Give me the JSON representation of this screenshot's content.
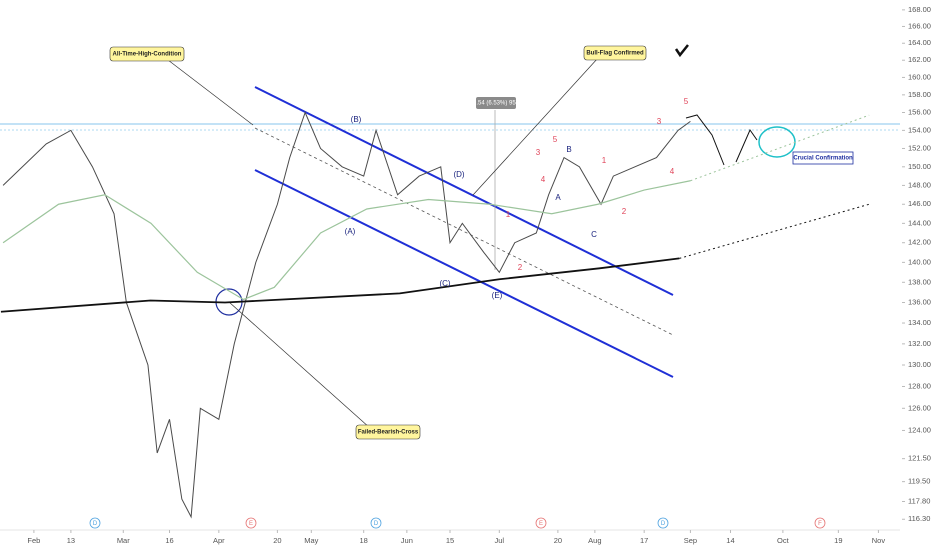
{
  "chart_data": {
    "type": "line",
    "y_scale": "log",
    "ylim": [
      115.4,
      169.2
    ],
    "xlim": [
      21,
      313
    ],
    "yticks": [
      {
        "value": 168,
        "label": "168.00"
      },
      {
        "value": 166,
        "label": "166.00"
      },
      {
        "value": 164,
        "label": "164.00"
      },
      {
        "value": 162,
        "label": "162.00"
      },
      {
        "value": 160,
        "label": "160.00"
      },
      {
        "value": 158,
        "label": "158.00"
      },
      {
        "value": 156,
        "label": "156.00"
      },
      {
        "value": 154,
        "label": "154.00"
      },
      {
        "value": 152,
        "label": "152.00"
      },
      {
        "value": 150,
        "label": "150.00"
      },
      {
        "value": 148,
        "label": "148.00"
      },
      {
        "value": 146,
        "label": "146.00"
      },
      {
        "value": 144,
        "label": "144.00"
      },
      {
        "value": 142,
        "label": "142.00"
      },
      {
        "value": 140,
        "label": "140.00"
      },
      {
        "value": 138,
        "label": "138.00"
      },
      {
        "value": 136,
        "label": "136.00"
      },
      {
        "value": 134,
        "label": "134.00"
      },
      {
        "value": 132,
        "label": "132.00"
      },
      {
        "value": 130,
        "label": "130.00"
      },
      {
        "value": 128,
        "label": "128.00"
      },
      {
        "value": 126,
        "label": "126.00"
      },
      {
        "value": 124,
        "label": "124.00"
      },
      {
        "value": 121.5,
        "label": "121.50"
      },
      {
        "value": 119.5,
        "label": "119.50"
      },
      {
        "value": 117.8,
        "label": "117.80"
      },
      {
        "value": 116.3,
        "label": "116.30"
      }
    ],
    "xticks": [
      {
        "value": 32,
        "label": "Feb"
      },
      {
        "value": 44,
        "label": "13"
      },
      {
        "value": 61,
        "label": "Mar"
      },
      {
        "value": 76,
        "label": "16"
      },
      {
        "value": 92,
        "label": "Apr"
      },
      {
        "value": 111,
        "label": "20"
      },
      {
        "value": 122,
        "label": "May"
      },
      {
        "value": 139,
        "label": "18"
      },
      {
        "value": 153,
        "label": "Jun"
      },
      {
        "value": 167,
        "label": "15"
      },
      {
        "value": 183,
        "label": "Jul"
      },
      {
        "value": 202,
        "label": "20"
      },
      {
        "value": 214,
        "label": "Aug"
      },
      {
        "value": 230,
        "label": "17"
      },
      {
        "value": 245,
        "label": "Sep"
      },
      {
        "value": 258,
        "label": "14"
      },
      {
        "value": 275,
        "label": "Oct"
      },
      {
        "value": 293,
        "label": "19"
      },
      {
        "value": 306,
        "label": "Nov"
      }
    ],
    "series": [
      {
        "color": "#4a4a4a",
        "dash": false,
        "width": 1,
        "x": [
          22,
          36,
          44,
          51,
          58,
          62,
          69,
          72,
          76,
          80,
          83,
          86,
          92,
          97,
          104,
          111,
          115,
          120,
          125,
          132,
          139,
          143,
          150,
          157,
          164,
          167,
          171,
          178,
          183,
          188,
          195,
          199,
          204,
          209,
          216,
          220,
          227,
          234,
          241,
          245
        ],
        "values": [
          148,
          152.5,
          154,
          150,
          145,
          136,
          130,
          122,
          125,
          118,
          116.5,
          126,
          125,
          132,
          140,
          146,
          151,
          156,
          152,
          150,
          149,
          154,
          147,
          149,
          150,
          142,
          144,
          141,
          139,
          142,
          143,
          147,
          151,
          150,
          146,
          149,
          150,
          151,
          154,
          155
        ]
      },
      {
        "color": "#9cc49c",
        "dash": false,
        "width": 1.2,
        "x": [
          22,
          40,
          55,
          70,
          85,
          100,
          110,
          125,
          140,
          160,
          180,
          200,
          215,
          230,
          245
        ],
        "values": [
          142,
          146,
          147,
          144,
          139,
          136.3,
          137.5,
          143,
          145.5,
          146.5,
          146,
          145,
          146,
          147.5,
          148.5
        ]
      },
      {
        "color": "#9cc49c",
        "dash": true,
        "width": 1,
        "x": [
          245,
          303
        ],
        "values": [
          148.5,
          155.7
        ]
      },
      {
        "color": "#111111",
        "dash": false,
        "width": 1.8,
        "x": [
          21.3,
          69.8,
          94,
          150.7,
          183,
          215.5,
          241.4
        ],
        "values": [
          135.1,
          136.2,
          136,
          136.9,
          138.3,
          139.4,
          140.4
        ]
      },
      {
        "color": "#111111",
        "dash": true,
        "width": 1,
        "x": [
          241.4,
          303
        ],
        "values": [
          140.4,
          146
        ]
      }
    ],
    "callouts": [
      "All-Time-High-Condition",
      "Bull-Flag Confirmed",
      "Failed-Bearish-Cross",
      "Crucial Confirmation"
    ],
    "measure_label": "9.54 (6.53%) 954",
    "wave_labels": [
      "(B)",
      "(A)",
      "(D)",
      "(C)",
      "(E)",
      "A",
      "B",
      "C",
      "1",
      "2",
      "3",
      "4",
      "5",
      "1",
      "2",
      "3",
      "4",
      "5"
    ],
    "date_markers": [
      "D",
      "E",
      "D",
      "E",
      "D",
      "F"
    ]
  }
}
